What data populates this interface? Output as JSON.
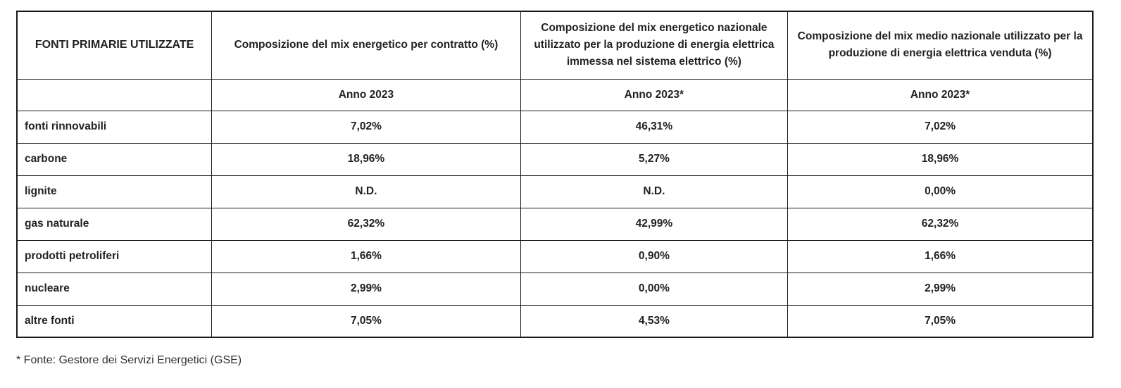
{
  "table": {
    "headers": [
      "FONTI PRIMARIE UTILIZZATE",
      "Composizione del mix energetico per contratto (%)",
      "Composizione del mix energetico nazionale utilizzato per la produzione di energia elettrica immessa nel sistema elettrico (%)",
      "Composizione del mix medio nazionale utilizzato per la produzione di energia elettrica venduta (%)"
    ],
    "year_row": [
      "",
      "Anno 2023",
      "Anno 2023*",
      "Anno 2023*"
    ],
    "rows": [
      {
        "source": "fonti rinnovabili",
        "values": [
          "7,02%",
          "46,31%",
          "7,02%"
        ]
      },
      {
        "source": "carbone",
        "values": [
          "18,96%",
          "5,27%",
          "18,96%"
        ]
      },
      {
        "source": "lignite",
        "values": [
          "N.D.",
          "N.D.",
          "0,00%"
        ]
      },
      {
        "source": "gas naturale",
        "values": [
          "62,32%",
          "42,99%",
          "62,32%"
        ]
      },
      {
        "source": "prodotti petroliferi",
        "values": [
          "1,66%",
          "0,90%",
          "1,66%"
        ]
      },
      {
        "source": "nucleare",
        "values": [
          "2,99%",
          "0,00%",
          "2,99%"
        ]
      },
      {
        "source": "altre fonti",
        "values": [
          "7,05%",
          "4,53%",
          "7,05%"
        ]
      }
    ]
  },
  "footnote": "* Fonte: Gestore dei Servizi Energetici (GSE)"
}
